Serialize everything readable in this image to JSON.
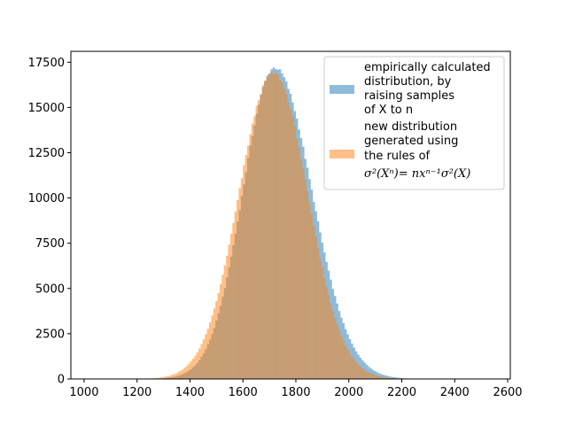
{
  "chart_data": {
    "type": "histogram",
    "title": "",
    "xlabel": "",
    "ylabel": "",
    "xlim": [
      950,
      2610
    ],
    "ylim": [
      0,
      18100
    ],
    "x_ticks": [
      1000,
      1200,
      1400,
      1600,
      1800,
      2000,
      2200,
      2400,
      2600
    ],
    "y_ticks": [
      0,
      2500,
      5000,
      7500,
      10000,
      12500,
      15000,
      17500
    ],
    "grid": false,
    "legend_position": "upper-right",
    "series": [
      {
        "name_lines": [
          "empirically calculated",
          "distribution, by",
          "raising samples",
          "of X to n"
        ],
        "color": "#1f77b4",
        "alpha": 0.5,
        "bin_range": [
          1000,
          2550
        ],
        "bin_width": 8,
        "peak_x": 1720,
        "peak_count": 17200,
        "sigma_left": 120,
        "sigma_right": 140
      },
      {
        "name_lines": [
          "new distribution",
          "generated using",
          "the rules of"
        ],
        "name_formula": "σ²(Xⁿ)= nxⁿ⁻¹σ²(X)",
        "color": "#ff7f0e",
        "alpha": 0.5,
        "bin_range": [
          1000,
          2550
        ],
        "bin_width": 8,
        "peak_x": 1715,
        "peak_count": 16900,
        "sigma": 130
      }
    ]
  }
}
